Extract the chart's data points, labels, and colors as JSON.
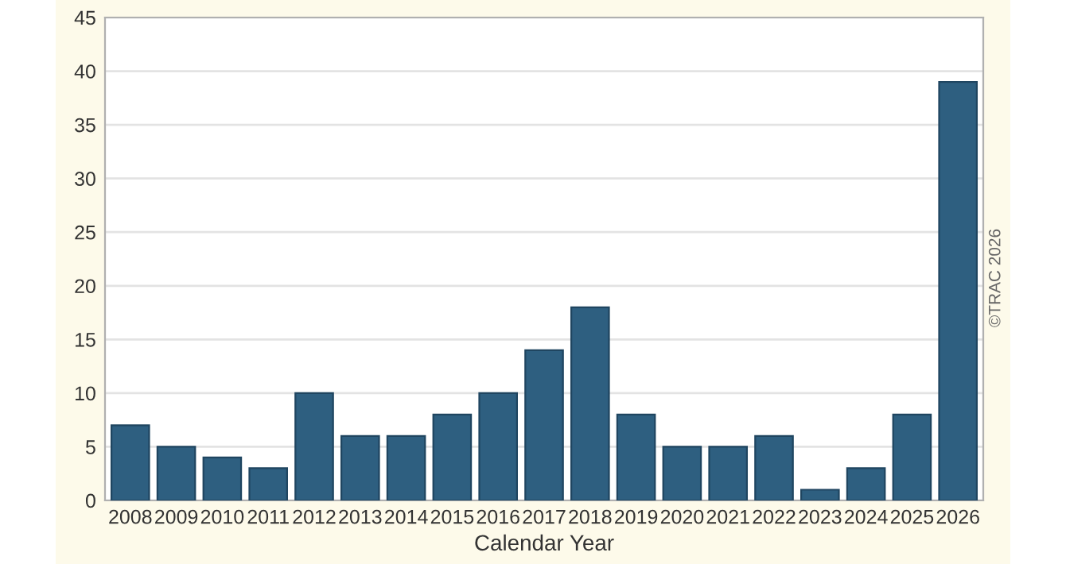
{
  "chart_data": {
    "type": "bar",
    "xlabel": "Calendar Year",
    "categories": [
      "2008",
      "2009",
      "2010",
      "2011",
      "2012",
      "2013",
      "2014",
      "2015",
      "2016",
      "2017",
      "2018",
      "2019",
      "2020",
      "2021",
      "2022",
      "2023",
      "2024",
      "2025",
      "2026"
    ],
    "values": [
      7,
      5,
      4,
      3,
      10,
      6,
      6,
      8,
      10,
      14,
      18,
      8,
      5,
      5,
      6,
      1,
      3,
      8,
      39
    ],
    "color": "#2e5f80",
    "ylim": [
      0,
      45
    ],
    "yticks": [
      0,
      5,
      10,
      15,
      20,
      25,
      30,
      35,
      40,
      45
    ],
    "grid": "y",
    "annotations": [
      "©TRAC 2026"
    ]
  }
}
